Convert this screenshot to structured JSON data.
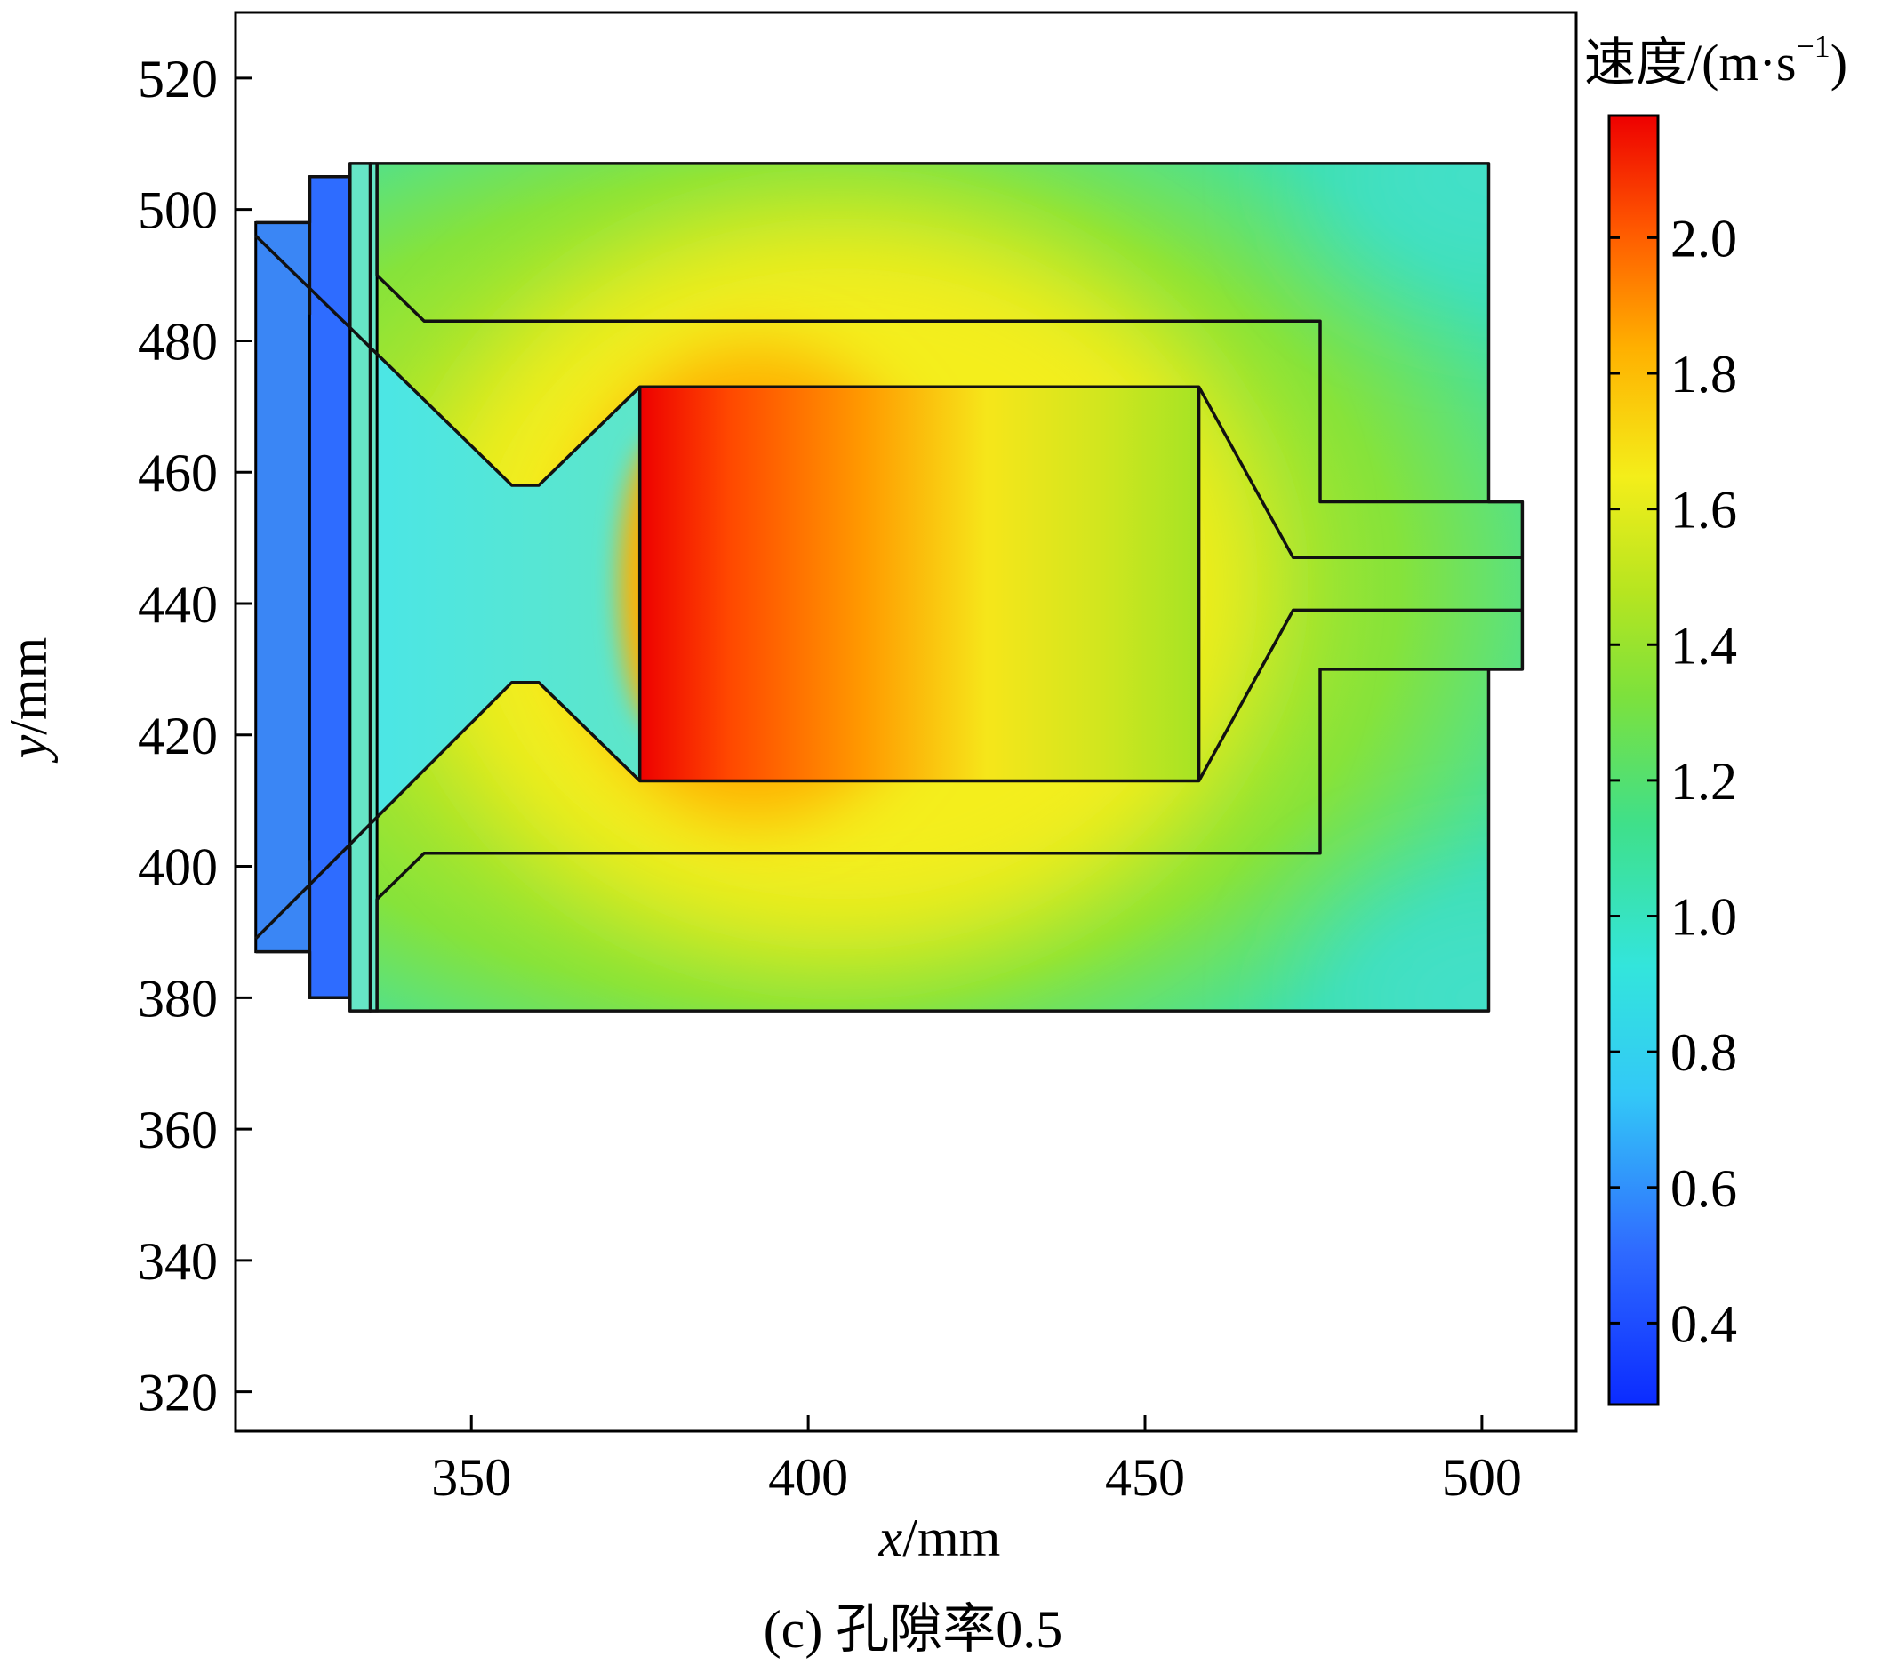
{
  "chart_data": {
    "type": "heatmap",
    "title": "",
    "caption": "(c) 孔隙率0.5",
    "xlabel_var": "x",
    "xlabel_unit": "/mm",
    "ylabel_var": "y",
    "ylabel_unit": "/mm",
    "xlim": [
      315,
      514
    ],
    "ylim": [
      314,
      530
    ],
    "x_ticks": [
      350,
      400,
      450,
      500
    ],
    "y_ticks": [
      320,
      340,
      360,
      380,
      400,
      420,
      440,
      460,
      480,
      500,
      520
    ],
    "grid": false,
    "colorbar": {
      "title_text": "速度/(m·s",
      "title_sup": "−1",
      "title_close": ")",
      "range": [
        0.28,
        2.18
      ],
      "ticks": [
        0.4,
        0.6,
        0.8,
        1.0,
        1.2,
        1.4,
        1.6,
        1.8,
        2.0
      ],
      "tick_labels": [
        "0.4",
        "0.6",
        "0.8",
        "1.0",
        "1.2",
        "1.4",
        "1.6",
        "1.8",
        "2.0"
      ],
      "colormap": "jet",
      "colors": [
        "#0b2bff",
        "#2f6bff",
        "#33d8f2",
        "#2fe2a3",
        "#7de13c",
        "#b6e520",
        "#f4ee1a",
        "#ffb000",
        "#ff5a00",
        "#ee0000"
      ]
    },
    "field": {
      "quantity": "速度",
      "unit": "m·s⁻¹",
      "regions": [
        {
          "name": "outer-domain",
          "value_range": [
            0.9,
            1.3
          ]
        },
        {
          "name": "annular-channel",
          "value_range": [
            1.2,
            1.5
          ]
        },
        {
          "name": "inlet-zone",
          "value_range": [
            0.4,
            0.9
          ]
        },
        {
          "name": "porous-core",
          "value_range": [
            1.3,
            2.1
          ]
        },
        {
          "name": "outlet-pipe",
          "value_range": [
            1.2,
            1.35
          ]
        }
      ]
    },
    "outlines": [
      {
        "name": "outer-boundary",
        "points": [
          [
            335,
            507
          ],
          [
            501,
            507
          ],
          [
            501,
            455.5
          ],
          [
            506,
            455.5
          ],
          [
            506,
            430
          ],
          [
            501,
            430
          ],
          [
            501,
            378
          ],
          [
            335,
            378
          ]
        ]
      },
      {
        "name": "inlet-boundary",
        "points": [
          [
            318,
            498
          ],
          [
            326,
            498
          ],
          [
            326,
            505
          ],
          [
            332,
            505
          ],
          [
            332,
            507
          ],
          [
            335,
            507
          ],
          [
            335,
            378
          ],
          [
            332,
            378
          ],
          [
            332,
            380
          ],
          [
            326,
            380
          ],
          [
            326,
            387
          ],
          [
            318,
            387
          ]
        ]
      },
      {
        "name": "channel-inner-top",
        "points": [
          [
            336,
            507
          ],
          [
            336,
            490
          ],
          [
            343,
            483
          ],
          [
            476,
            483
          ],
          [
            476,
            455.5
          ],
          [
            506,
            455.5
          ]
        ]
      },
      {
        "name": "channel-inner-bottom",
        "points": [
          [
            336,
            378
          ],
          [
            336,
            395
          ],
          [
            343,
            402
          ],
          [
            476,
            402
          ],
          [
            476,
            430
          ],
          [
            506,
            430
          ]
        ]
      },
      {
        "name": "diffuser-upper",
        "points": [
          [
            318,
            496
          ],
          [
            356,
            458
          ],
          [
            360,
            458
          ],
          [
            375,
            473
          ],
          [
            458,
            473
          ],
          [
            472,
            447
          ],
          [
            506,
            447
          ]
        ]
      },
      {
        "name": "diffuser-lower",
        "points": [
          [
            318,
            389
          ],
          [
            356,
            428
          ],
          [
            360,
            428
          ],
          [
            375,
            413
          ],
          [
            458,
            413
          ],
          [
            472,
            439
          ],
          [
            506,
            439
          ]
        ]
      },
      {
        "name": "core-inlet-face",
        "points": [
          [
            375,
            473
          ],
          [
            375,
            413
          ]
        ]
      },
      {
        "name": "core-outlet-face",
        "points": [
          [
            458,
            473
          ],
          [
            458,
            413
          ]
        ]
      },
      {
        "name": "inlet-step-1",
        "points": [
          [
            326,
            505
          ],
          [
            326,
            484
          ]
        ]
      },
      {
        "name": "inlet-step-2",
        "points": [
          [
            332,
            505
          ],
          [
            332,
            482
          ]
        ]
      },
      {
        "name": "inlet-step-3",
        "points": [
          [
            326,
            380
          ],
          [
            326,
            401
          ]
        ]
      },
      {
        "name": "inlet-step-4",
        "points": [
          [
            332,
            380
          ],
          [
            332,
            403
          ]
        ]
      }
    ]
  }
}
